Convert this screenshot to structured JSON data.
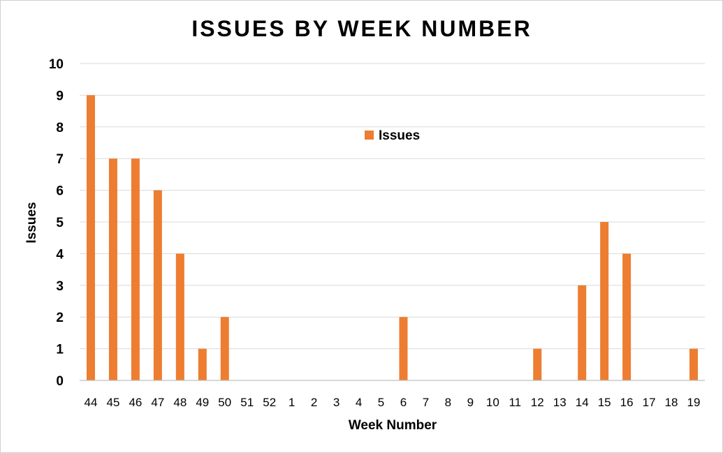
{
  "chart_data": {
    "type": "bar",
    "title": "ISSUES BY WEEK NUMBER",
    "xlabel": "Week Number",
    "ylabel": "Issues",
    "ylim": [
      0,
      10
    ],
    "yticks": [
      "0",
      "1",
      "2",
      "3",
      "4",
      "5",
      "6",
      "7",
      "8",
      "9",
      "10"
    ],
    "grid": true,
    "legend_position": "top-center",
    "categories": [
      "44",
      "45",
      "46",
      "47",
      "48",
      "49",
      "50",
      "51",
      "52",
      "1",
      "2",
      "3",
      "4",
      "5",
      "6",
      "7",
      "8",
      "9",
      "10",
      "11",
      "12",
      "13",
      "14",
      "15",
      "16",
      "17",
      "18",
      "19"
    ],
    "series": [
      {
        "name": "Issues",
        "color": "#ed7d31",
        "values": [
          9,
          7,
          7,
          6,
          4,
          1,
          2,
          0,
          0,
          0,
          0,
          0,
          0,
          0,
          2,
          0,
          0,
          0,
          0,
          0,
          1,
          0,
          3,
          5,
          4,
          0,
          0,
          1
        ]
      }
    ]
  }
}
